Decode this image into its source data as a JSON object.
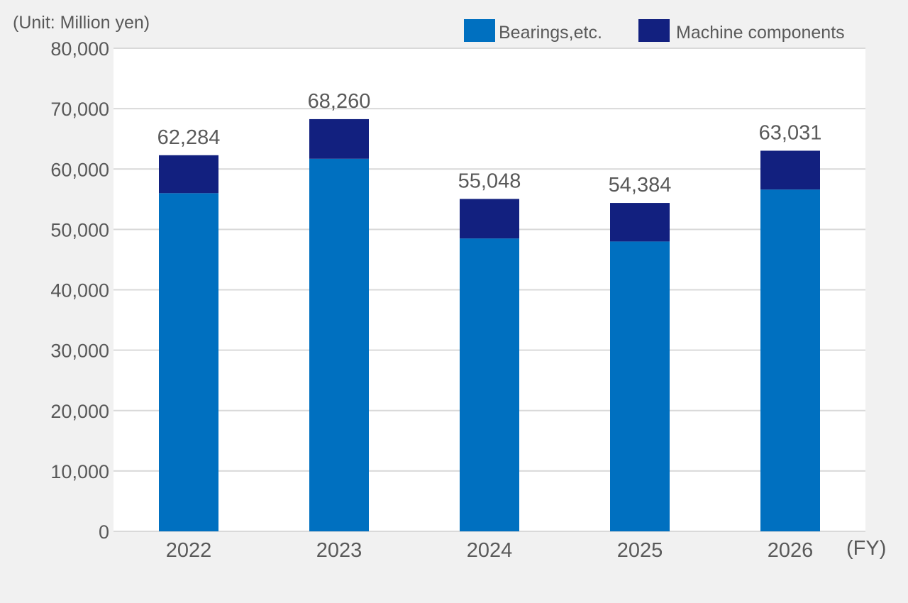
{
  "chart_data": {
    "type": "bar",
    "stacked": true,
    "unit_label": "(Unit: Million yen)",
    "x_unit": "(FY)",
    "categories": [
      "2022",
      "2023",
      "2024",
      "2025",
      "2026"
    ],
    "series": [
      {
        "name": "Bearings,etc.",
        "color": "#0070c0",
        "values": [
          56000,
          61700,
          48500,
          48000,
          56600
        ]
      },
      {
        "name": "Machine components",
        "color": "#12207f",
        "values": [
          6284,
          6560,
          6548,
          6384,
          6431
        ]
      }
    ],
    "totals": [
      "62,284",
      "68,260",
      "55,048",
      "54,384",
      "63,031"
    ],
    "yticks": [
      0,
      10000,
      20000,
      30000,
      40000,
      50000,
      60000,
      70000,
      80000
    ],
    "ytick_labels": [
      "0",
      "10,000",
      "20,000",
      "30,000",
      "40,000",
      "50,000",
      "60,000",
      "70,000",
      "80,000"
    ],
    "ylim": [
      0,
      80000
    ],
    "grid": true,
    "legend": "top-right"
  }
}
